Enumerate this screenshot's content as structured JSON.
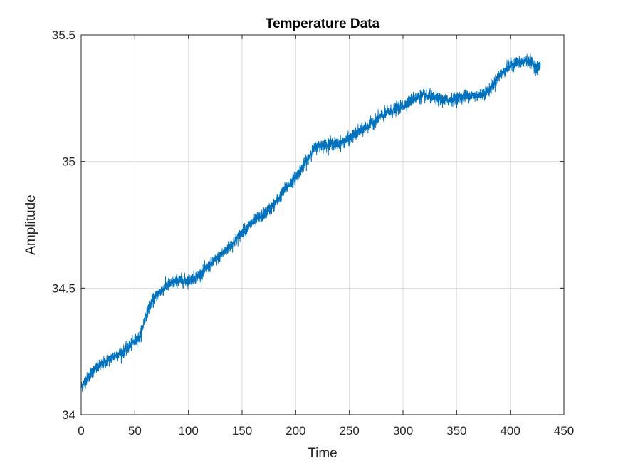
{
  "chart_data": {
    "type": "line",
    "title": "Temperature Data",
    "xlabel": "Time",
    "ylabel": "Amplitude",
    "xlim": [
      0,
      450
    ],
    "ylim": [
      34,
      35.5
    ],
    "xticks": [
      0,
      50,
      100,
      150,
      200,
      250,
      300,
      350,
      400,
      450
    ],
    "yticks": [
      34,
      34.5,
      35,
      35.5
    ],
    "xtick_labels": [
      "0",
      "50",
      "100",
      "150",
      "200",
      "250",
      "300",
      "350",
      "400",
      "450"
    ],
    "ytick_labels": [
      "34",
      "34.5",
      "35",
      "35.5"
    ],
    "grid": true,
    "series": [
      {
        "color": "#0072bd",
        "noise_amplitude": 0.012,
        "x": [
          0,
          10,
          20,
          30,
          40,
          50,
          55,
          60,
          65,
          70,
          80,
          90,
          100,
          110,
          120,
          130,
          140,
          150,
          160,
          170,
          180,
          190,
          200,
          210,
          215,
          220,
          230,
          240,
          250,
          260,
          270,
          280,
          290,
          300,
          310,
          320,
          330,
          340,
          350,
          360,
          370,
          380,
          390,
          400,
          405,
          410,
          415,
          420,
          425,
          428
        ],
        "y": [
          34.11,
          34.17,
          34.2,
          34.23,
          34.25,
          34.29,
          34.31,
          34.39,
          34.44,
          34.47,
          34.51,
          34.53,
          34.53,
          34.55,
          34.59,
          34.63,
          34.67,
          34.72,
          34.76,
          34.79,
          34.83,
          34.89,
          34.94,
          35.0,
          35.04,
          35.06,
          35.07,
          35.07,
          35.09,
          35.12,
          35.15,
          35.18,
          35.2,
          35.22,
          35.25,
          35.26,
          35.25,
          35.24,
          35.25,
          35.26,
          35.26,
          35.28,
          35.34,
          35.38,
          35.39,
          35.39,
          35.4,
          35.39,
          35.37,
          35.38
        ]
      }
    ]
  }
}
